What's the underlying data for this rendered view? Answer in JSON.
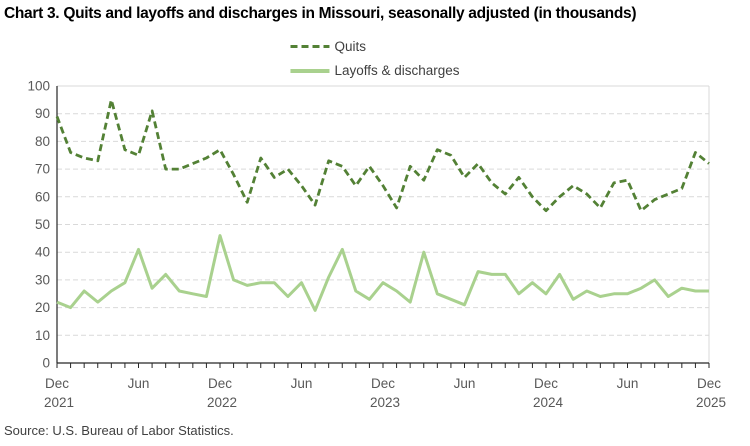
{
  "page": {
    "title": "Chart 3. Quits and layoffs and discharges in Missouri, seasonally adjusted (in thousands)",
    "source": "Source: U.S. Bureau of Labor Statistics."
  },
  "legend": {
    "items": [
      {
        "label": "Quits",
        "style": "dashed",
        "color": "#538135"
      },
      {
        "label": "Layoffs & discharges",
        "style": "solid",
        "color": "#A9D18E"
      }
    ]
  },
  "colors": {
    "quits_line": "#538135",
    "layoffs_line": "#A9D18E",
    "gridline": "#D9D9D9",
    "plot_border": "#D9D9D9",
    "axis_line": "#262626",
    "tick_label": "#595959",
    "title_text": "#000000",
    "source_text": "#404040"
  },
  "chart_data": {
    "type": "line",
    "title": "Chart 3. Quits and layoffs and discharges in Missouri, seasonally adjusted (in thousands)",
    "xlabel": "",
    "ylabel": "",
    "ylim": [
      0,
      100
    ],
    "yticks": [
      0,
      10,
      20,
      30,
      40,
      50,
      60,
      70,
      80,
      90,
      100
    ],
    "grid": "horizontal-dashed",
    "legend_position": "top-center",
    "x_months": [
      "Dec 2021",
      "Jan 2022",
      "Feb 2022",
      "Mar 2022",
      "Apr 2022",
      "May 2022",
      "Jun 2022",
      "Jul 2022",
      "Aug 2022",
      "Sep 2022",
      "Oct 2022",
      "Nov 2022",
      "Dec 2022",
      "Jan 2023",
      "Feb 2023",
      "Mar 2023",
      "Apr 2023",
      "May 2023",
      "Jun 2023",
      "Jul 2023",
      "Aug 2023",
      "Sep 2023",
      "Oct 2023",
      "Nov 2023",
      "Dec 2023",
      "Jan 2024",
      "Feb 2024",
      "Mar 2024",
      "Apr 2024",
      "May 2024",
      "Jun 2024",
      "Jul 2024",
      "Aug 2024",
      "Sep 2024",
      "Oct 2024",
      "Nov 2024",
      "Dec 2024",
      "Jan 2025",
      "Feb 2025",
      "Mar 2025",
      "Apr 2025",
      "May 2025",
      "Jun 2025",
      "Jul 2025",
      "Aug 2025",
      "Sep 2025",
      "Oct 2025",
      "Nov 2025",
      "Dec 2025"
    ],
    "x_major_ticks": [
      {
        "pos": 0,
        "line1": "Dec",
        "line2": "2021"
      },
      {
        "pos": 6,
        "line1": "Jun"
      },
      {
        "pos": 12,
        "line1": "Dec",
        "line2": "2022"
      },
      {
        "pos": 18,
        "line1": "Jun"
      },
      {
        "pos": 24,
        "line1": "Dec",
        "line2": "2023"
      },
      {
        "pos": 30,
        "line1": "Jun"
      },
      {
        "pos": 36,
        "line1": "Dec",
        "line2": "2024"
      },
      {
        "pos": 42,
        "line1": "Jun"
      },
      {
        "pos": 48,
        "line1": "Dec",
        "line2": "2025"
      }
    ],
    "series": [
      {
        "name": "Quits",
        "color": "#538135",
        "dash": true,
        "values": [
          89,
          76,
          74,
          73,
          95,
          77,
          75,
          91,
          70,
          70,
          72,
          74,
          77,
          68,
          58,
          74,
          67,
          70,
          64,
          57,
          73,
          71,
          64,
          71,
          64,
          56,
          71,
          66,
          77,
          75,
          67,
          72,
          65,
          61,
          67,
          60,
          55,
          60,
          64,
          61,
          56,
          65,
          66,
          55,
          59,
          61,
          63,
          76,
          72
        ]
      },
      {
        "name": "Layoffs & discharges",
        "color": "#A9D18E",
        "dash": false,
        "values": [
          22,
          20,
          26,
          22,
          26,
          29,
          41,
          27,
          32,
          26,
          25,
          24,
          46,
          30,
          28,
          29,
          29,
          24,
          29,
          19,
          31,
          41,
          26,
          23,
          29,
          26,
          22,
          40,
          25,
          23,
          21,
          33,
          32,
          32,
          25,
          29,
          25,
          32,
          23,
          26,
          24,
          25,
          25,
          27,
          30,
          24,
          27,
          26,
          26
        ]
      }
    ]
  }
}
